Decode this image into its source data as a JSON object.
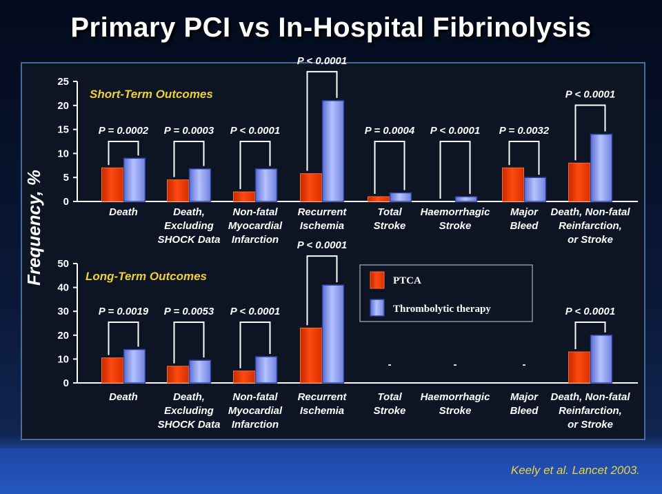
{
  "title": "Primary PCI vs In-Hospital Fibrinolysis",
  "citation": "Keely et al. Lancet 2003.",
  "colors": {
    "ptca": "#ff3b00",
    "thrombolytic": "#8a9ff0",
    "subtitle": "#f0cf3a",
    "panel_border": "#4a6c9a"
  },
  "chart_data": [
    {
      "type": "bar",
      "title": "Short-Term Outcomes",
      "ylabel": "Frequency, %",
      "xlabel": "",
      "ylim": [
        0,
        25
      ],
      "yticks": [
        0,
        5,
        10,
        15,
        20,
        25
      ],
      "categories": [
        [
          "Death"
        ],
        [
          "Death,",
          "Excluding",
          "SHOCK Data"
        ],
        [
          "Non-fatal",
          "Myocardial",
          "Infarction"
        ],
        [
          "Recurrent",
          "Ischemia"
        ],
        [
          "Total",
          "Stroke"
        ],
        [
          "Haemorrhagic",
          "Stroke"
        ],
        [
          "Major",
          "Bleed"
        ],
        [
          "Death, Non-fatal",
          "Reinfarction,",
          "or Stroke"
        ]
      ],
      "series": [
        {
          "name": "PTCA",
          "values": [
            7,
            4.5,
            2,
            5.8,
            1,
            0,
            7,
            8
          ]
        },
        {
          "name": "Thrombolytic therapy",
          "values": [
            9,
            6.8,
            6.8,
            21,
            1.8,
            1,
            5,
            14
          ]
        }
      ],
      "p_values": [
        "P = 0.0002",
        "P = 0.0003",
        "P < 0.0001",
        "P < 0.0001",
        "P = 0.0004",
        "P < 0.0001",
        "P = 0.0032",
        "P < 0.0001"
      ]
    },
    {
      "type": "bar",
      "title": "Long-Term Outcomes",
      "ylabel": "Frequency, %",
      "xlabel": "",
      "ylim": [
        0,
        50
      ],
      "yticks": [
        0,
        10,
        20,
        30,
        40,
        50
      ],
      "categories": [
        [
          "Death"
        ],
        [
          "Death,",
          "Excluding",
          "SHOCK Data"
        ],
        [
          "Non-fatal",
          "Myocardial",
          "Infarction"
        ],
        [
          "Recurrent",
          "Ischemia"
        ],
        [
          "Total",
          "Stroke"
        ],
        [
          "Haemorrhagic",
          "Stroke"
        ],
        [
          "Major",
          "Bleed"
        ],
        [
          "Death, Non-fatal",
          "Reinfarction,",
          "or Stroke"
        ]
      ],
      "series": [
        {
          "name": "PTCA",
          "values": [
            10.5,
            7,
            5,
            23,
            null,
            null,
            null,
            13
          ]
        },
        {
          "name": "Thrombolytic therapy",
          "values": [
            14,
            9.5,
            11,
            41,
            null,
            null,
            null,
            20
          ]
        }
      ],
      "p_values": [
        "P = 0.0019",
        "P = 0.0053",
        "P < 0.0001",
        "P < 0.0001",
        null,
        null,
        null,
        "P < 0.0001"
      ],
      "missing_marker": "-"
    }
  ],
  "legend": [
    "PTCA",
    "Thrombolytic therapy"
  ]
}
